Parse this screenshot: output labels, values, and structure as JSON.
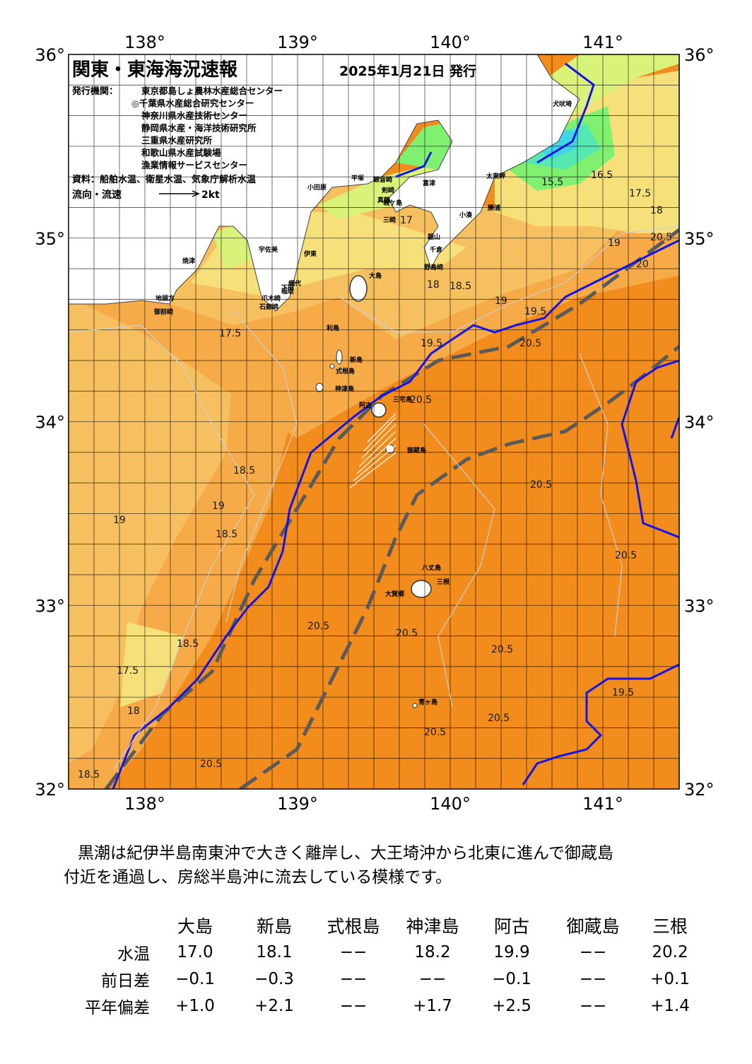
{
  "map": {
    "title": "関東・東海海況速報",
    "issue_date": "2025年1月21日 発行",
    "issuer_label": "発行機関：",
    "issuers": [
      "東京都島しょ農林水産総合センター",
      "◎千葉県水産総合研究センター",
      "神奈川県水産技術センター",
      "静岡県水産・海洋技術研究所",
      "三重県水産研究所",
      "和歌山県水産試験場",
      "漁業情報サービスセンター"
    ],
    "source": "資料：船舶水温、衛星水温、気象庁解析水温",
    "flow_legend": "流向・流速",
    "flow_scale": "2kt",
    "lon_labels": [
      "138°",
      "139°",
      "140°",
      "141°"
    ],
    "lat_labels": [
      "36°",
      "35°",
      "34°",
      "33°",
      "32°"
    ],
    "place_labels": [
      "犬吠埼",
      "太東岬",
      "勝浦",
      "小湊",
      "鋸山",
      "千倉",
      "野島崎",
      "富津",
      "観音崎",
      "剣崎",
      "城ケ島",
      "三崎",
      "平塚",
      "小田原",
      "真鶴",
      "伊東",
      "網代",
      "稲取",
      "下田",
      "石廊崎",
      "爪木崎",
      "大島",
      "利島",
      "新島",
      "式根島",
      "神津島",
      "三宅島",
      "阿古",
      "御蔵島",
      "八丈島",
      "三根",
      "大賀郷",
      "青ヶ島",
      "地頭方",
      "御前崎",
      "焼津",
      "宇佐美"
    ],
    "isotherm_labels": [
      "15.5",
      "16.5",
      "17",
      "17.5",
      "18",
      "18.5",
      "19",
      "19.5",
      "20",
      "20.5"
    ],
    "colors": {
      "kuroshio_axis": "#1414e6",
      "mean_path": "#5a5a5a",
      "land": "#ffffff",
      "t_lt_14": "#3fd6e8",
      "t_15": "#55e8b0",
      "t_16": "#80f070",
      "t_17": "#d8f27a",
      "t_17_5": "#f6e07a",
      "t_18": "#f6c060",
      "t_18_5": "#f6aa48",
      "t_19": "#f59a30",
      "t_20": "#f28c1c"
    }
  },
  "summary": {
    "line1": "黒潮は紀伊半島南東沖で大きく離岸し、大王埼沖から北東に進んで御蔵島",
    "line2": "付近を通過し、房総半島沖に流去している模様です。"
  },
  "stats": {
    "columns": [
      "大島",
      "新島",
      "式根島",
      "神津島",
      "阿古",
      "御蔵島",
      "三根"
    ],
    "rows": [
      {
        "label": "水温",
        "values": [
          "17.0",
          "18.1",
          "−−",
          "18.2",
          "19.9",
          "−−",
          "20.2"
        ]
      },
      {
        "label": "前日差",
        "values": [
          "−0.1",
          "−0.3",
          "−−",
          "−−",
          "−0.1",
          "−−",
          "+0.1"
        ]
      },
      {
        "label": "平年偏差",
        "values": [
          "+1.0",
          "+2.1",
          "−−",
          "+1.7",
          "+2.5",
          "−−",
          "+1.4"
        ]
      }
    ]
  }
}
